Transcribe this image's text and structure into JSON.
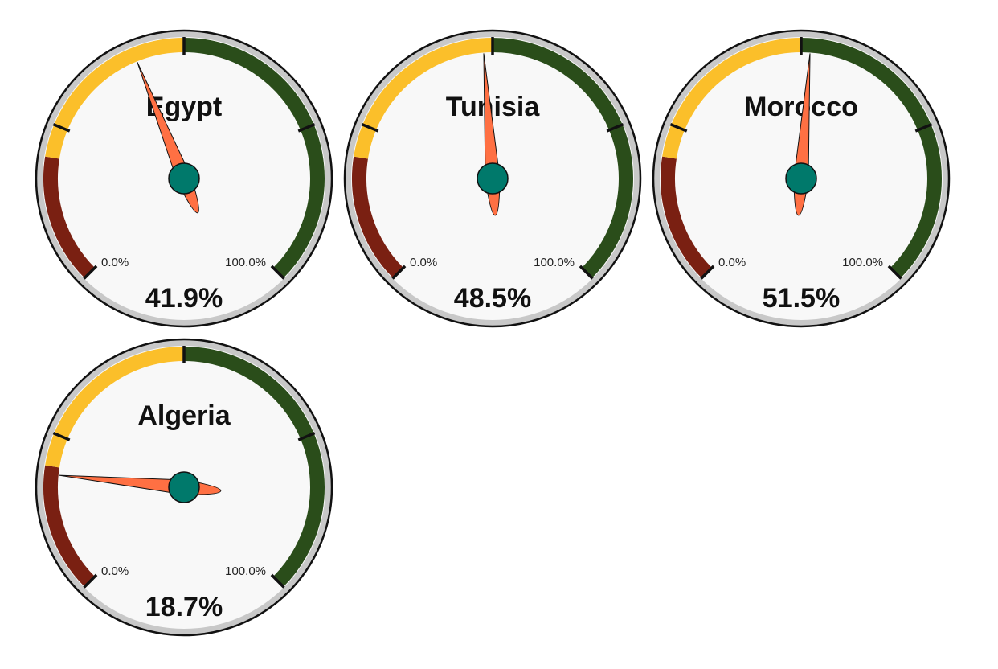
{
  "chart_data": {
    "type": "gauge",
    "min": 0,
    "max": 100,
    "min_label": "0.0%",
    "max_label": "100.0%",
    "bands": [
      {
        "from": 0,
        "to": 20,
        "color": "#7a2012"
      },
      {
        "from": 20,
        "to": 50,
        "color": "#fbbf2a"
      },
      {
        "from": 50,
        "to": 100,
        "color": "#2a4d1a"
      }
    ],
    "colors": {
      "face": "#f8f8f8",
      "rim": "#c8c8c8",
      "needle": "#ff7043",
      "hub": "#00796b",
      "outline": "#111111"
    },
    "gauges": [
      {
        "title": "Egypt",
        "value": 41.9,
        "value_label": "41.9%"
      },
      {
        "title": "Tunisia",
        "value": 48.5,
        "value_label": "48.5%"
      },
      {
        "title": "Morocco",
        "value": 51.5,
        "value_label": "51.5%"
      },
      {
        "title": "Algeria",
        "value": 18.7,
        "value_label": "18.7%"
      }
    ]
  }
}
